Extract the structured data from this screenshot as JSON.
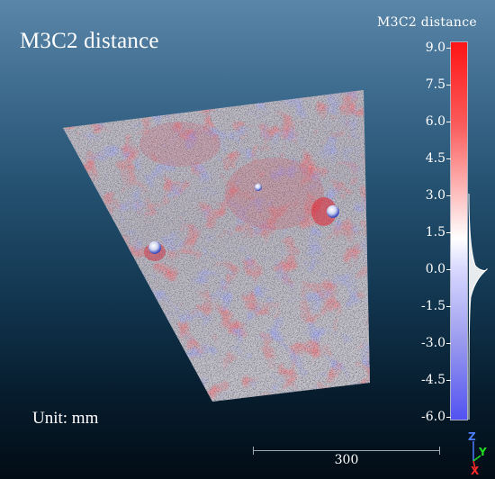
{
  "view": {
    "title": "M3C2 distance",
    "unit_label": "Unit: mm"
  },
  "scalar_field": {
    "title": "M3C2 distance",
    "ticks": [
      "9.0",
      "7.5",
      "6.0",
      "4.5",
      "3.0",
      "1.5",
      "0.0",
      "-1.5",
      "-3.0",
      "-4.5",
      "-6.0"
    ],
    "range": [
      -6.0,
      9.0
    ],
    "colors": {
      "max": "#ff1515",
      "zero": "#ffffff",
      "min": "#5252f2"
    }
  },
  "scale_bar": {
    "label": "300"
  },
  "axes": {
    "z": {
      "label": "Z",
      "color": "#4d7dff"
    },
    "y": {
      "label": "Y",
      "color": "#1fe01f"
    },
    "x": {
      "label": "X",
      "color": "#ff2b2b"
    }
  }
}
